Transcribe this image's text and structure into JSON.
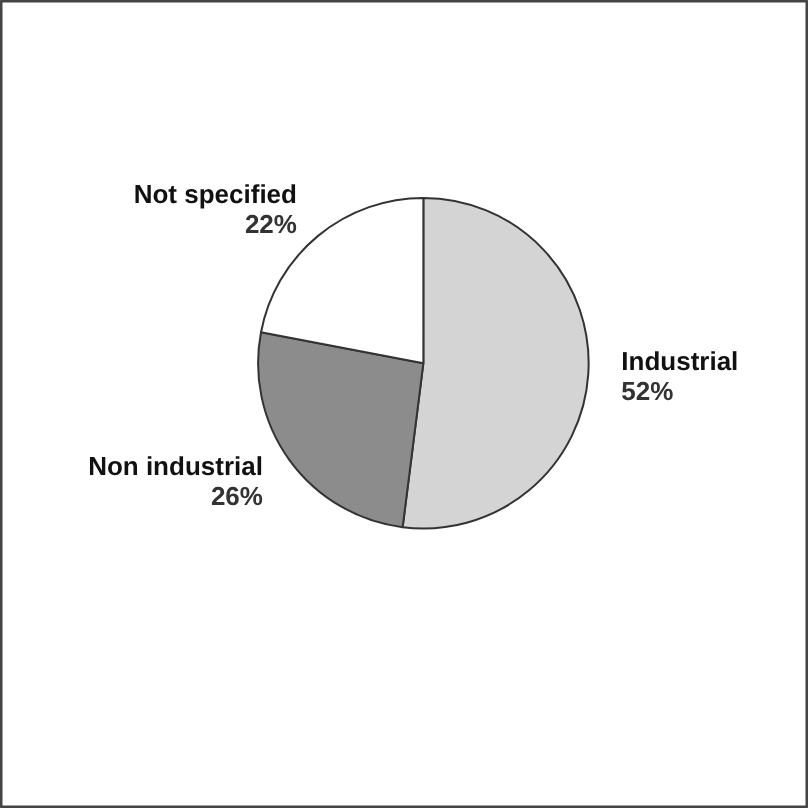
{
  "chart_data": {
    "type": "pie",
    "categories": [
      "Industrial",
      "Non industrial",
      "Not specified"
    ],
    "values": [
      52,
      26,
      22
    ],
    "colors": [
      "#d4d4d4",
      "#8c8c8c",
      "#ffffff"
    ],
    "value_labels": [
      "52%",
      "26%",
      "22%"
    ]
  }
}
